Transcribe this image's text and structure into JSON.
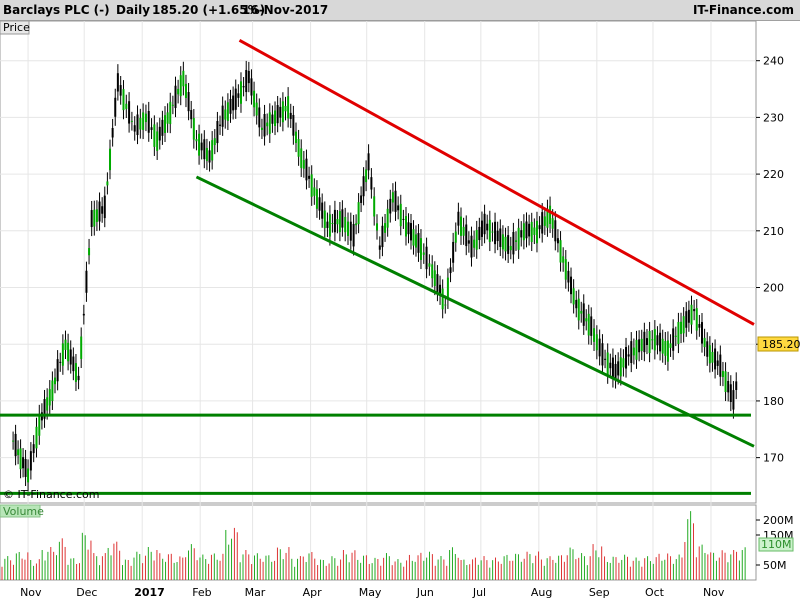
{
  "header": {
    "instrument": "Barclays PLC (-)",
    "period": "Daily",
    "last": "185.20 (+1.65%)",
    "date": "16-Nov-2017",
    "brand": "IT-Finance.com"
  },
  "price_panel_label": "Price",
  "volume_panel_label": "Volume",
  "watermark": "© IT-Finance.com",
  "colors": {
    "up": "#00aa00",
    "down": "#000000",
    "resistance": "#e00000",
    "support": "#008000",
    "grid": "#e6e6e6",
    "vol_up": "#22aa22",
    "vol_down": "#dd3333"
  },
  "chart_data": {
    "type": "line",
    "title": "Barclays PLC (-) Daily",
    "ylim": [
      162,
      247
    ],
    "y_ticks": [
      170,
      180,
      190,
      200,
      210,
      220,
      230,
      240
    ],
    "last_price": "185.20",
    "x_ticks": [
      "Nov",
      "Dec",
      "2017",
      "Feb",
      "Mar",
      "Apr",
      "May",
      "Jun",
      "Jul",
      "Aug",
      "Sep",
      "Oct",
      "Nov"
    ],
    "series": [
      {
        "x": [
          "2016-10-24",
          "2016-11-01",
          "2016-11-07",
          "2016-11-14",
          "2016-11-21",
          "2016-11-28",
          "2016-12-05",
          "2016-12-12",
          "2016-12-19",
          "2016-12-28",
          "2017-01-03",
          "2017-01-09",
          "2017-01-16",
          "2017-01-23",
          "2017-01-30",
          "2017-02-06",
          "2017-02-13",
          "2017-02-20",
          "2017-02-27",
          "2017-03-06",
          "2017-03-13",
          "2017-03-20",
          "2017-03-27",
          "2017-04-03",
          "2017-04-10",
          "2017-04-18",
          "2017-04-24",
          "2017-05-02",
          "2017-05-08",
          "2017-05-15",
          "2017-05-22",
          "2017-05-30",
          "2017-06-05",
          "2017-06-12",
          "2017-06-19",
          "2017-06-26",
          "2017-07-03",
          "2017-07-10",
          "2017-07-17",
          "2017-07-24",
          "2017-07-31",
          "2017-08-07",
          "2017-08-14",
          "2017-08-21",
          "2017-08-29",
          "2017-09-04",
          "2017-09-11",
          "2017-09-18",
          "2017-09-25",
          "2017-10-02",
          "2017-10-09",
          "2017-10-16",
          "2017-10-23",
          "2017-10-30",
          "2017-11-06",
          "2017-11-13",
          "2017-11-16"
        ],
        "values": [
          173,
          167,
          176,
          182,
          190,
          184,
          212,
          214,
          236,
          228,
          230,
          226,
          231,
          237,
          226,
          223,
          230,
          233,
          237,
          228,
          230,
          232,
          223,
          217,
          211,
          212,
          209,
          222,
          207,
          216,
          211,
          207,
          203,
          197,
          212,
          207,
          211,
          209,
          207,
          210,
          210,
          213,
          205,
          197,
          193,
          188,
          185,
          188,
          190,
          191,
          189,
          193,
          196,
          189,
          186,
          180,
          185.2
        ]
      }
    ],
    "resistance_line": {
      "from": [
        "2017-02-22",
        243.6
      ],
      "to": [
        "2017-11-24",
        193.5
      ]
    },
    "support_channel_line": {
      "from": [
        "2017-01-30",
        219.5
      ],
      "to": [
        "2017-11-24",
        172.0
      ]
    },
    "horizontal_support_levels": [
      177.5,
      163.7
    ],
    "volume": {
      "ylabel": "Volume",
      "ticks": [
        "200M",
        "150M",
        "110M",
        "50M"
      ],
      "ylim": [
        0,
        250
      ],
      "values": [
        80,
        95,
        70,
        110,
        140,
        75,
        160,
        90,
        130,
        70,
        95,
        110,
        90,
        80,
        120,
        85,
        90,
        175,
        100,
        90,
        85,
        110,
        80,
        95,
        70,
        80,
        100,
        85,
        75,
        90,
        70,
        85,
        95,
        80,
        110,
        70,
        80,
        75,
        85,
        90,
        95,
        80,
        85,
        110,
        90,
        120,
        80,
        85,
        75,
        80,
        90,
        85,
        230,
        120,
        95,
        100,
        110
      ]
    }
  }
}
